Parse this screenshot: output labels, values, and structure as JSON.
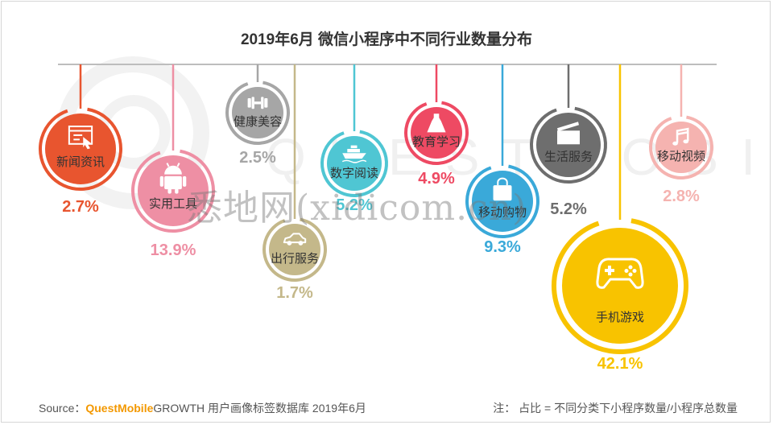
{
  "title": "2019年6月 微信小程序中不同行业数量分布",
  "watermark_text": "QUESTMOBILE",
  "overlay_watermark": "悉地网(xidicom.cn)",
  "chart_data": {
    "type": "pie",
    "unit": "%",
    "categories": [
      "新闻资讯",
      "实用工具",
      "健康美容",
      "出行服务",
      "数字阅读",
      "教育学习",
      "移动购物",
      "生活服务",
      "手机游戏",
      "移动视频"
    ],
    "values": [
      2.7,
      13.9,
      2.5,
      1.7,
      5.2,
      4.9,
      9.3,
      5.2,
      42.1,
      2.8
    ],
    "value_labels": [
      "2.7%",
      "13.9%",
      "2.5%",
      "1.7%",
      "5.2%",
      "4.9%",
      "9.3%",
      "5.2%",
      "42.1%",
      "2.8%"
    ],
    "colors": [
      "#e8552f",
      "#ee8fa4",
      "#a6a6a6",
      "#c4b88a",
      "#4fc6d3",
      "#ee4a63",
      "#3aa9d9",
      "#6e6e6e",
      "#f8c300",
      "#f5b3b0"
    ],
    "icons": [
      "news-browser-icon",
      "android-robot-icon",
      "dumbbell-icon",
      "car-icon",
      "ship-icon",
      "dress-icon",
      "shopping-bag-icon",
      "clapperboard-icon",
      "gamepad-icon",
      "music-note-icon"
    ]
  },
  "footer": {
    "source_prefix": "Source：",
    "source_brand": "QuestMobile",
    "source_suffix": "GROWTH 用户画像标签数据库  2019年6月",
    "note": "注：  占比 = 不同分类下小程序数量/小程序总数量"
  }
}
